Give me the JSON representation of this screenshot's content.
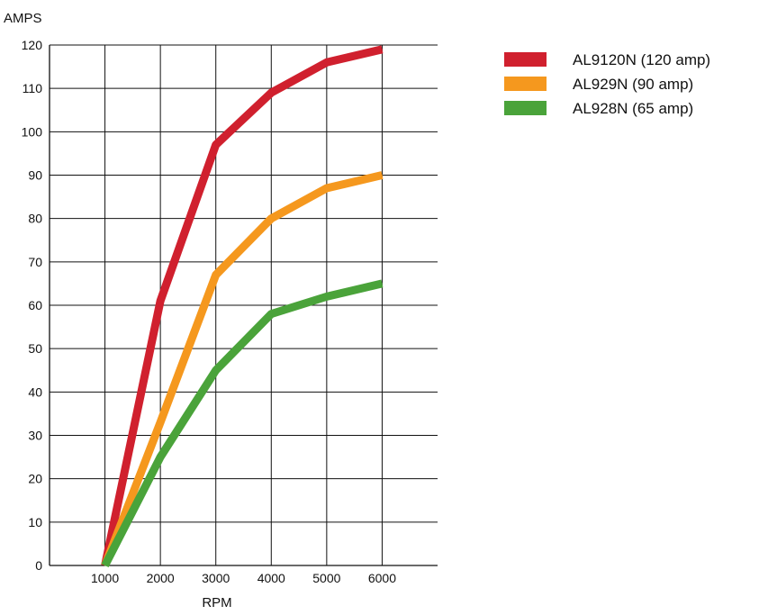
{
  "chart_data": {
    "type": "line",
    "ylabel": "AMPS",
    "xlabel": "RPM",
    "x": [
      1000,
      2000,
      3000,
      4000,
      5000,
      6000
    ],
    "x_ticks": [
      "1000",
      "2000",
      "3000",
      "4000",
      "5000",
      "6000"
    ],
    "y_ticks": [
      "0",
      "10",
      "20",
      "30",
      "40",
      "50",
      "60",
      "70",
      "80",
      "90",
      "100",
      "110",
      "120"
    ],
    "xlim": [
      0,
      7000
    ],
    "ylim": [
      0,
      120
    ],
    "grid": true,
    "legend_position": "top-right",
    "series": [
      {
        "name": "AL9120N (120 amp)",
        "color": "#d0202e",
        "values": [
          0,
          61,
          97,
          109,
          116,
          119
        ]
      },
      {
        "name": "AL929N (90 amp)",
        "color": "#f5981e",
        "values": [
          0,
          33,
          67,
          80,
          87,
          90
        ]
      },
      {
        "name": "AL928N (65 amp)",
        "color": "#4aa33a",
        "values": [
          0,
          25,
          45,
          58,
          62,
          65
        ]
      }
    ]
  }
}
